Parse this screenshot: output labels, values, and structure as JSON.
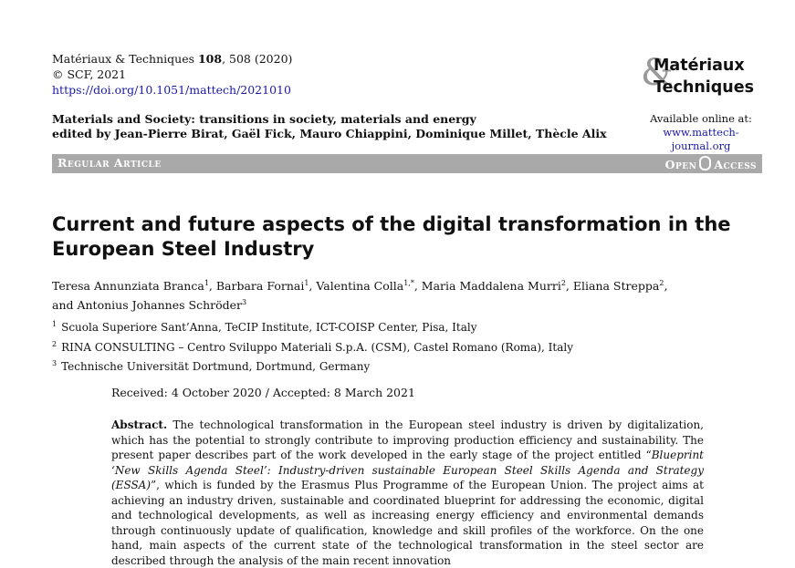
{
  "journal": {
    "citation_prefix": "Matériaux & Techniques ",
    "citation_volume": "108",
    "citation_suffix": ", 508 (2020)",
    "copyright": "© SCF, 2021",
    "doi": "https://doi.org/10.1051/mattech/2021010"
  },
  "logo": {
    "amp": "&",
    "word1": "Matériaux",
    "word2": "Techniques"
  },
  "available": {
    "label": "Available online at:",
    "url": "www.mattech-journal.org"
  },
  "special_issue": {
    "line1": "Materials and Society: transitions in society, materials and energy",
    "line2": "edited by Jean-Pierre Birat, Gaël Fick, Mauro Chiappini, Dominique Millet, Thècle Alix"
  },
  "banner": {
    "left": "Regular Article",
    "open": "Open",
    "access": "Access"
  },
  "title": "Current and future aspects of the digital transformation in the European Steel Industry",
  "authors": [
    {
      "name": "Teresa Annunziata Branca",
      "sup": "1"
    },
    {
      "name": "Barbara Fornai",
      "sup": "1"
    },
    {
      "name": "Valentina Colla",
      "sup": "1,*"
    },
    {
      "name": "Maria Maddalena Murri",
      "sup": "2"
    },
    {
      "name": "Eliana Streppa",
      "sup": "2"
    },
    {
      "name": "and Antonius Johannes Schröder",
      "sup": "3"
    }
  ],
  "affiliations": [
    {
      "num": "1",
      "text": "Scuola Superiore Sant’Anna, TeCIP Institute, ICT-COISP Center, Pisa, Italy"
    },
    {
      "num": "2",
      "text": "RINA CONSULTING – Centro Sviluppo Materiali S.p.A. (CSM), Castel Romano (Roma), Italy"
    },
    {
      "num": "3",
      "text": "Technische Universität Dortmund, Dortmund, Germany"
    }
  ],
  "received": "Received: 4 October 2020 / Accepted: 8 March 2021",
  "abstract": {
    "label": "Abstract.",
    "part1": " The technological transformation in the European steel industry is driven by digitalization, which has the potential to strongly contribute to improving production efficiency and sustainability. The present paper describes part of the work developed in the early stage of the project entitled “",
    "italic": "Blueprint ‘New Skills Agenda Steel’: Industry-driven sustainable European Steel Skills Agenda and Strategy (ESSA)",
    "part2": "”, which is funded by the Erasmus Plus Programme of the European Union. The project aims at achieving an industry driven, sustainable and coordinated blueprint for addressing the economic, digital and technological developments, as well as increasing energy efficiency and environmental demands through continuously update of qualification, knowledge and skill profiles of the workforce. On the one hand, main aspects of the current state of the technological transformation in the steel sector are described through the analysis of the main recent innovation"
  }
}
